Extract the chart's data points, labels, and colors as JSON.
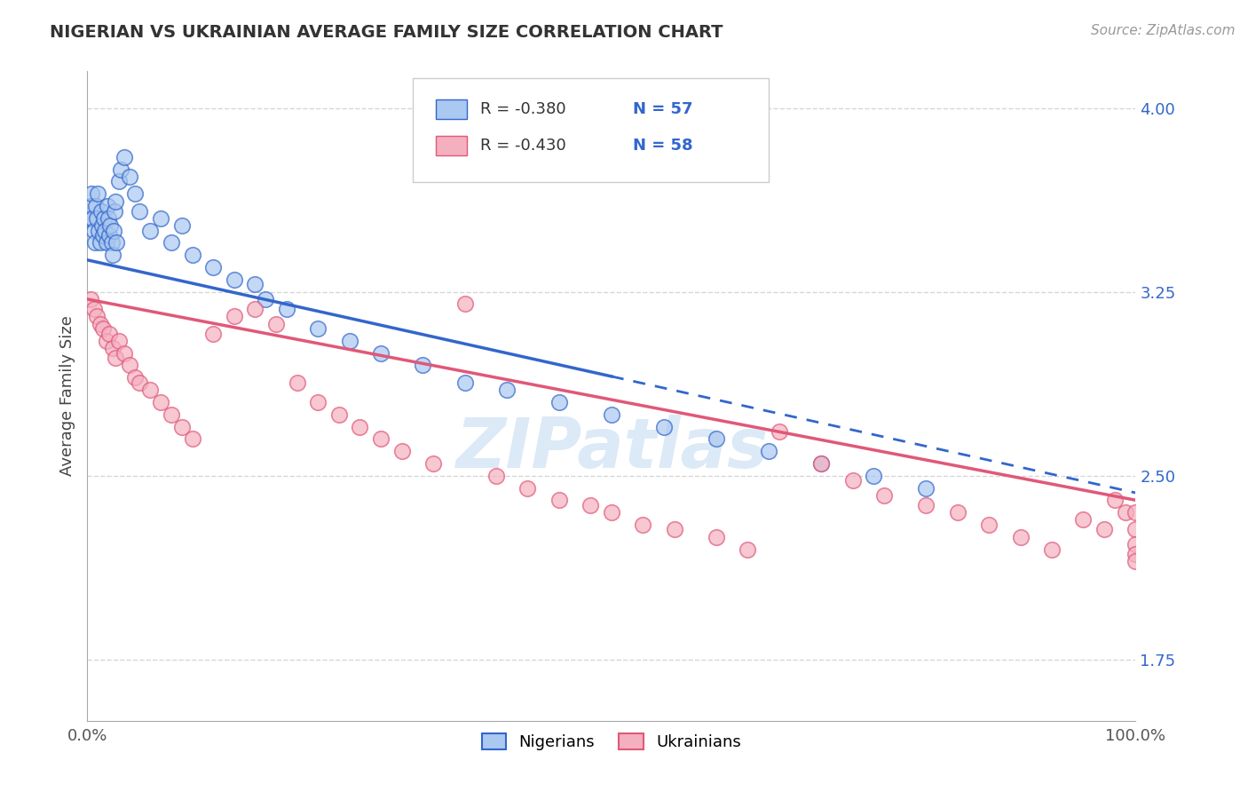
{
  "title": "NIGERIAN VS UKRAINIAN AVERAGE FAMILY SIZE CORRELATION CHART",
  "source_text": "Source: ZipAtlas.com",
  "ylabel": "Average Family Size",
  "xlim": [
    0,
    100
  ],
  "ylim": [
    1.5,
    4.15
  ],
  "yticks": [
    1.75,
    2.5,
    3.25,
    4.0
  ],
  "nigerian_color": "#aac8f0",
  "ukrainian_color": "#f5b0c0",
  "nigerian_line_color": "#3366cc",
  "ukrainian_line_color": "#e05878",
  "legend_r_nigerian": "R = -0.380",
  "legend_n_nigerian": "N = 57",
  "legend_r_ukrainian": "R = -0.430",
  "legend_n_ukrainian": "N = 58",
  "legend_label_nigerian": "Nigerians",
  "legend_label_ukrainian": "Ukrainians",
  "watermark": "ZIPatlas",
  "background_color": "#ffffff",
  "grid_color": "#cccccc",
  "nig_intercept": 3.38,
  "nig_slope": -0.0095,
  "ukr_intercept": 3.22,
  "ukr_slope": -0.0082,
  "nig_solid_end": 50,
  "nig_x": [
    0.2,
    0.3,
    0.4,
    0.5,
    0.6,
    0.7,
    0.8,
    0.9,
    1.0,
    1.1,
    1.2,
    1.3,
    1.4,
    1.5,
    1.6,
    1.7,
    1.8,
    1.9,
    2.0,
    2.1,
    2.2,
    2.3,
    2.4,
    2.5,
    2.6,
    2.7,
    2.8,
    3.0,
    3.2,
    3.5,
    4.0,
    4.5,
    5.0,
    6.0,
    7.0,
    8.0,
    9.0,
    10.0,
    12.0,
    14.0,
    16.0,
    17.0,
    19.0,
    22.0,
    25.0,
    28.0,
    32.0,
    36.0,
    40.0,
    45.0,
    50.0,
    55.0,
    60.0,
    65.0,
    70.0,
    75.0,
    80.0
  ],
  "nig_y": [
    3.55,
    3.6,
    3.65,
    3.55,
    3.5,
    3.45,
    3.6,
    3.55,
    3.65,
    3.5,
    3.45,
    3.58,
    3.52,
    3.48,
    3.55,
    3.5,
    3.45,
    3.6,
    3.55,
    3.48,
    3.52,
    3.45,
    3.4,
    3.5,
    3.58,
    3.62,
    3.45,
    3.7,
    3.75,
    3.8,
    3.72,
    3.65,
    3.58,
    3.5,
    3.55,
    3.45,
    3.52,
    3.4,
    3.35,
    3.3,
    3.28,
    3.22,
    3.18,
    3.1,
    3.05,
    3.0,
    2.95,
    2.88,
    2.85,
    2.8,
    2.75,
    2.7,
    2.65,
    2.6,
    2.55,
    2.5,
    2.45
  ],
  "ukr_x": [
    0.3,
    0.6,
    0.9,
    1.2,
    1.5,
    1.8,
    2.1,
    2.4,
    2.7,
    3.0,
    3.5,
    4.0,
    4.5,
    5.0,
    6.0,
    7.0,
    8.0,
    9.0,
    10.0,
    12.0,
    14.0,
    16.0,
    18.0,
    20.0,
    22.0,
    24.0,
    26.0,
    28.0,
    30.0,
    33.0,
    36.0,
    39.0,
    42.0,
    45.0,
    48.0,
    50.0,
    53.0,
    56.0,
    60.0,
    63.0,
    66.0,
    70.0,
    73.0,
    76.0,
    80.0,
    83.0,
    86.0,
    89.0,
    92.0,
    95.0,
    97.0,
    98.0,
    99.0,
    100.0,
    100.0,
    100.0,
    100.0,
    100.0
  ],
  "ukr_y": [
    3.22,
    3.18,
    3.15,
    3.12,
    3.1,
    3.05,
    3.08,
    3.02,
    2.98,
    3.05,
    3.0,
    2.95,
    2.9,
    2.88,
    2.85,
    2.8,
    2.75,
    2.7,
    2.65,
    3.08,
    3.15,
    3.18,
    3.12,
    2.88,
    2.8,
    2.75,
    2.7,
    2.65,
    2.6,
    2.55,
    3.2,
    2.5,
    2.45,
    2.4,
    2.38,
    2.35,
    2.3,
    2.28,
    2.25,
    2.2,
    2.68,
    2.55,
    2.48,
    2.42,
    2.38,
    2.35,
    2.3,
    2.25,
    2.2,
    2.32,
    2.28,
    2.4,
    2.35,
    2.35,
    2.28,
    2.22,
    2.18,
    2.15
  ]
}
